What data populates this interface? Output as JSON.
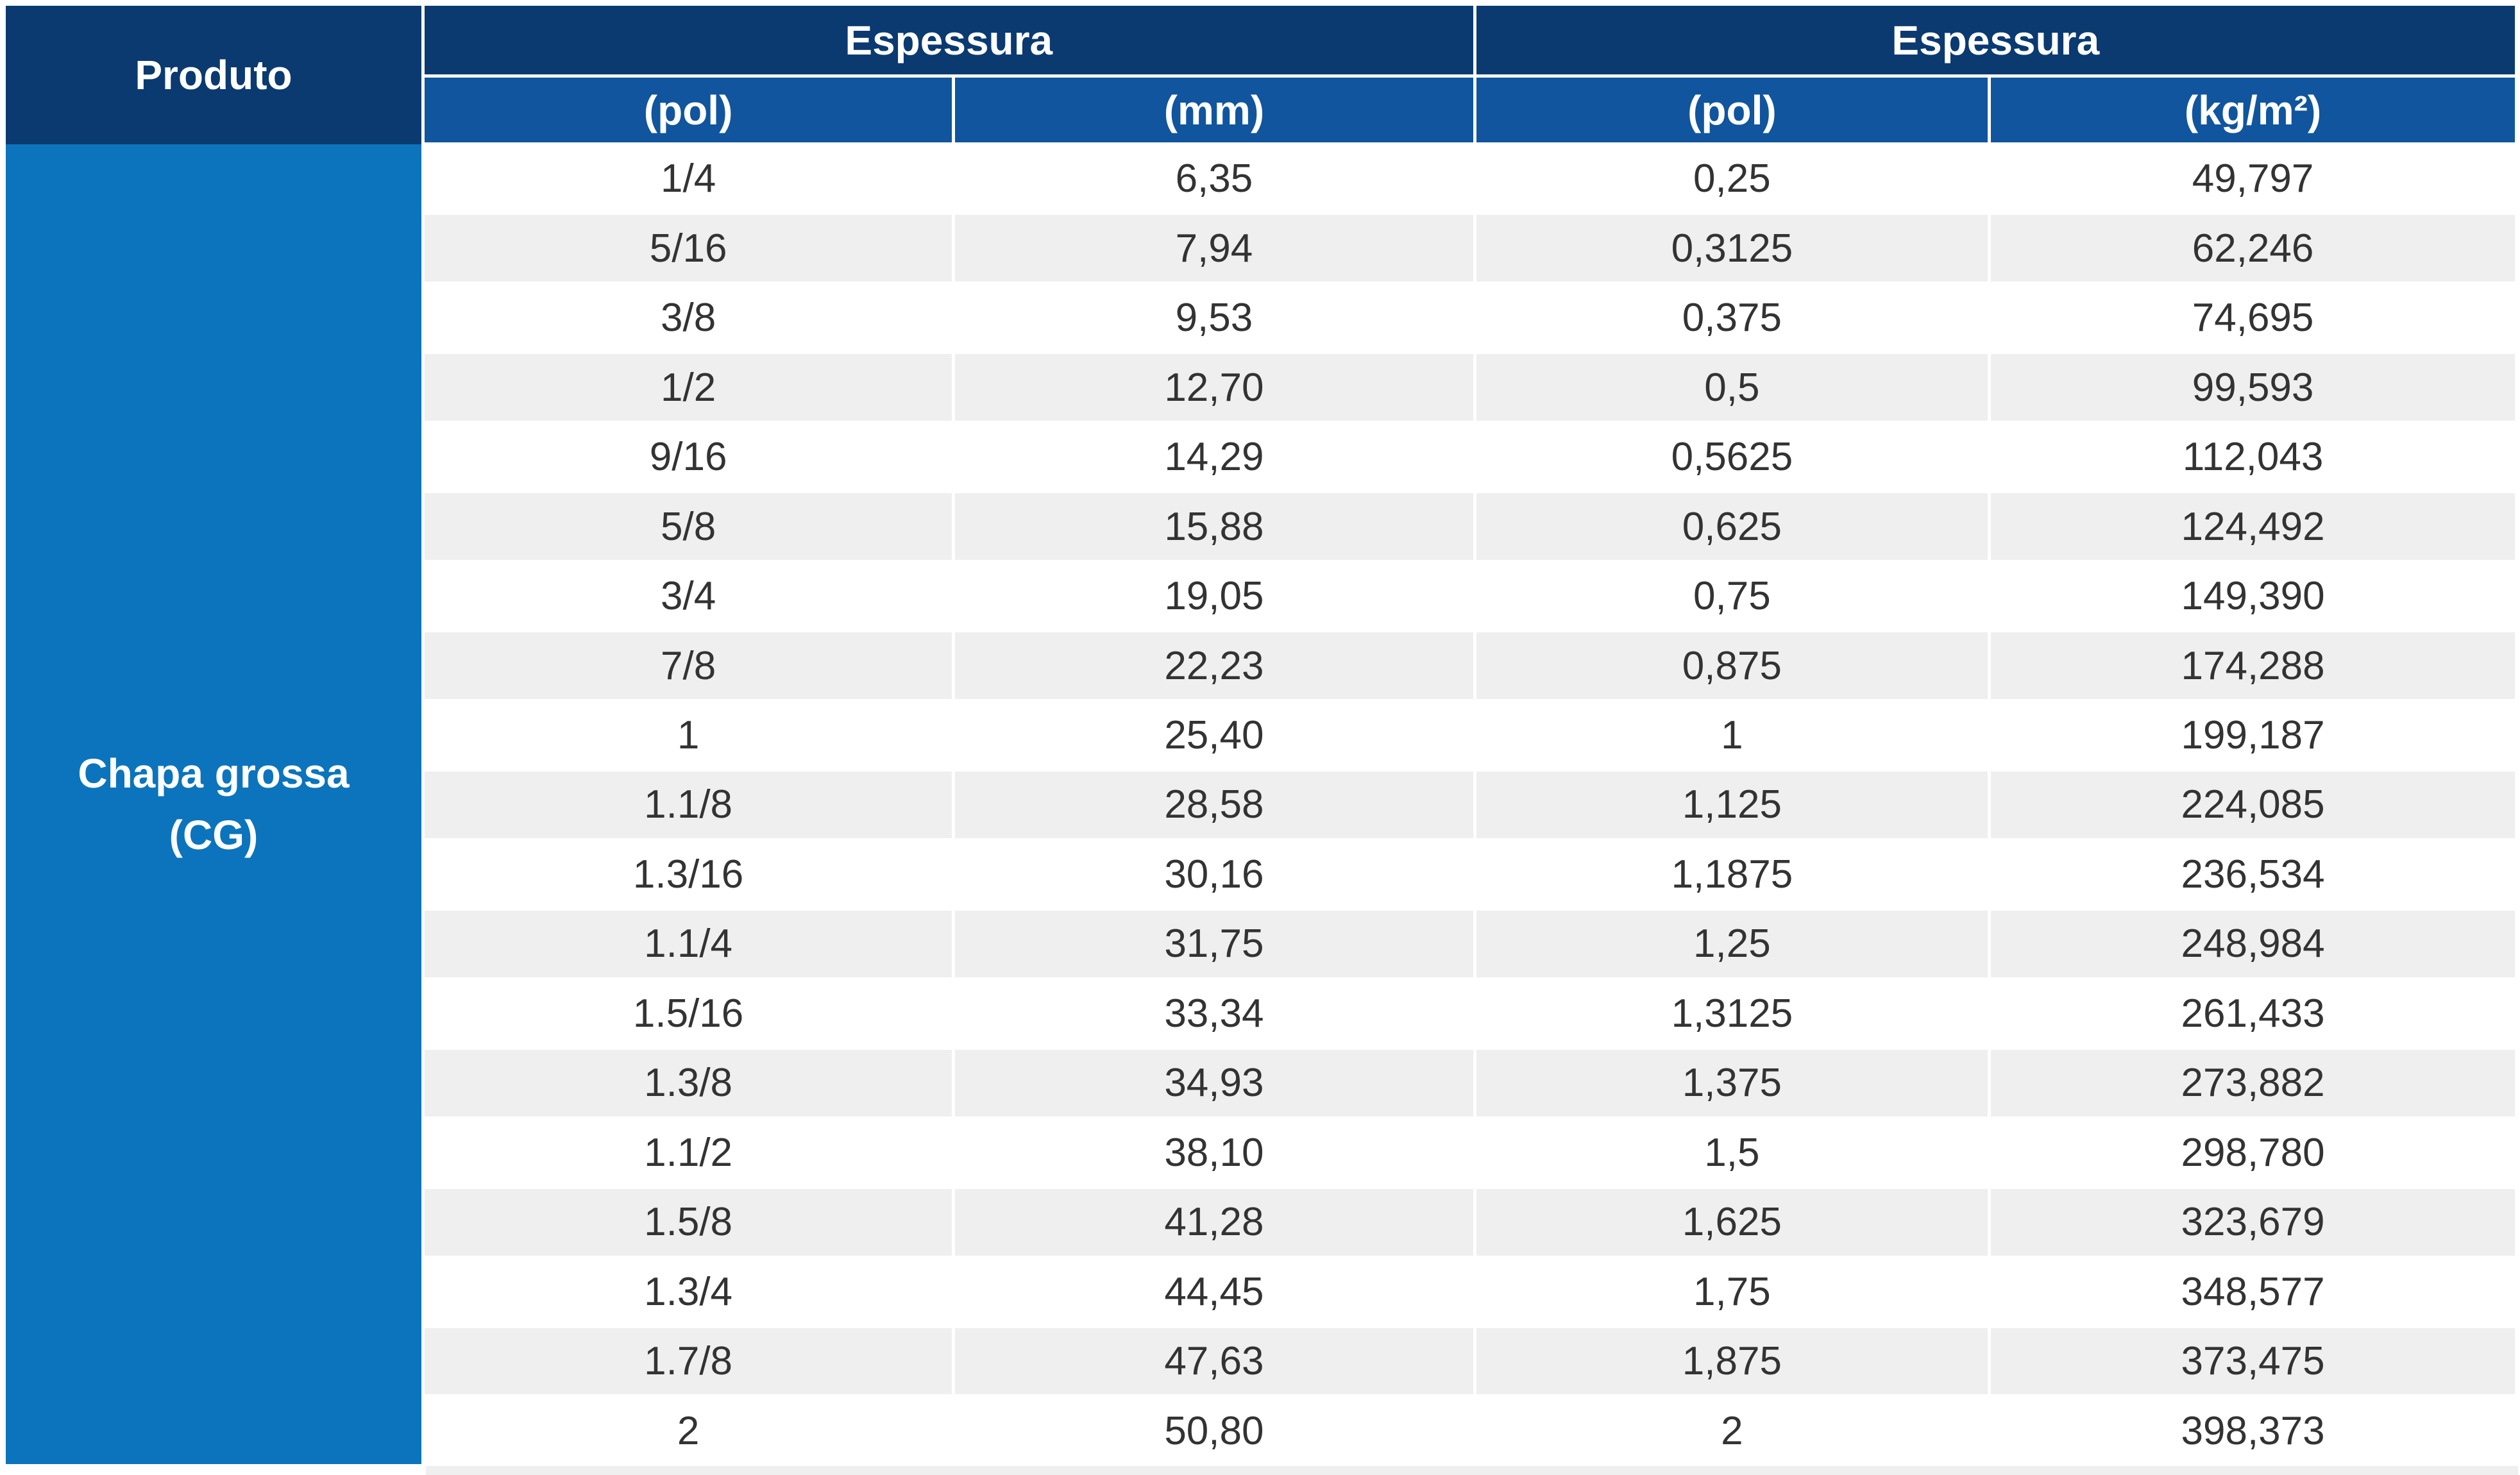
{
  "table": {
    "header": {
      "produto_label": "Produto",
      "group1_label": "Espessura",
      "group2_label": "Espessura",
      "subheaders": [
        "(pol)",
        "(mm)",
        "(pol)",
        "(kg/m²)"
      ]
    },
    "product": {
      "name_line1": "Chapa grossa",
      "name_line2": "(CG)"
    },
    "columns": [
      "pol_frac",
      "mm",
      "pol_dec",
      "kg_m2"
    ],
    "rows": [
      {
        "pol_frac": "1/4",
        "mm": "6,35",
        "pol_dec": "0,25",
        "kg_m2": "49,797"
      },
      {
        "pol_frac": "5/16",
        "mm": "7,94",
        "pol_dec": "0,3125",
        "kg_m2": "62,246"
      },
      {
        "pol_frac": "3/8",
        "mm": "9,53",
        "pol_dec": "0,375",
        "kg_m2": "74,695"
      },
      {
        "pol_frac": "1/2",
        "mm": "12,70",
        "pol_dec": "0,5",
        "kg_m2": "99,593"
      },
      {
        "pol_frac": "9/16",
        "mm": "14,29",
        "pol_dec": "0,5625",
        "kg_m2": "112,043"
      },
      {
        "pol_frac": "5/8",
        "mm": "15,88",
        "pol_dec": "0,625",
        "kg_m2": "124,492"
      },
      {
        "pol_frac": "3/4",
        "mm": "19,05",
        "pol_dec": "0,75",
        "kg_m2": "149,390"
      },
      {
        "pol_frac": "7/8",
        "mm": "22,23",
        "pol_dec": "0,875",
        "kg_m2": "174,288"
      },
      {
        "pol_frac": "1",
        "mm": "25,40",
        "pol_dec": "1",
        "kg_m2": "199,187"
      },
      {
        "pol_frac": "1.1/8",
        "mm": "28,58",
        "pol_dec": "1,125",
        "kg_m2": "224,085"
      },
      {
        "pol_frac": "1.3/16",
        "mm": "30,16",
        "pol_dec": "1,1875",
        "kg_m2": "236,534"
      },
      {
        "pol_frac": "1.1/4",
        "mm": "31,75",
        "pol_dec": "1,25",
        "kg_m2": "248,984"
      },
      {
        "pol_frac": "1.5/16",
        "mm": "33,34",
        "pol_dec": "1,3125",
        "kg_m2": "261,433"
      },
      {
        "pol_frac": "1.3/8",
        "mm": "34,93",
        "pol_dec": "1,375",
        "kg_m2": "273,882"
      },
      {
        "pol_frac": "1.1/2",
        "mm": "38,10",
        "pol_dec": "1,5",
        "kg_m2": "298,780"
      },
      {
        "pol_frac": "1.5/8",
        "mm": "41,28",
        "pol_dec": "1,625",
        "kg_m2": "323,679"
      },
      {
        "pol_frac": "1.3/4",
        "mm": "44,45",
        "pol_dec": "1,75",
        "kg_m2": "348,577"
      },
      {
        "pol_frac": "1.7/8",
        "mm": "47,63",
        "pol_dec": "1,875",
        "kg_m2": "373,475"
      },
      {
        "pol_frac": "2",
        "mm": "50,80",
        "pol_dec": "2",
        "kg_m2": "398,373"
      }
    ],
    "colors": {
      "header_navy": "#0a3a70",
      "subheader_blue": "#10559e",
      "product_blue": "#0b74bc",
      "row_alternate": "#efefef",
      "row_base": "#ffffff",
      "grid_line": "#ffffff",
      "data_text": "#333333",
      "header_text": "#ffffff"
    }
  }
}
